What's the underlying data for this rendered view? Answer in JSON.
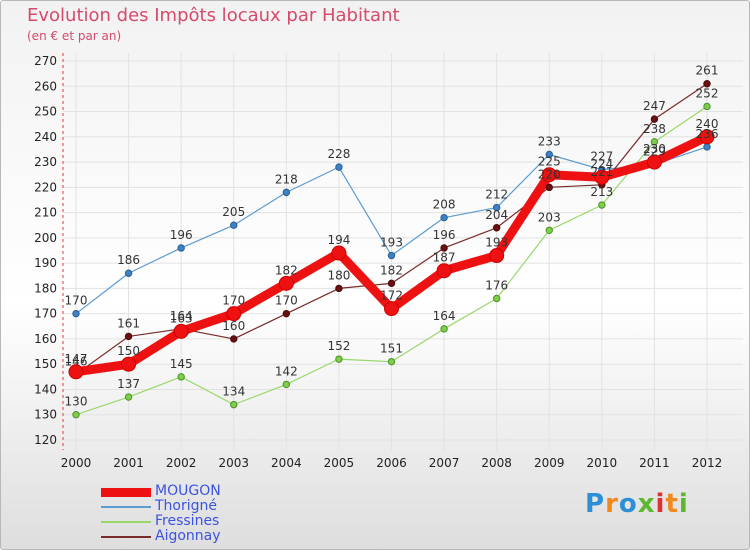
{
  "title": "Evolution des Impôts locaux par Habitant",
  "subtitle": "(en € et par an)",
  "logo": {
    "letters": [
      "P",
      "r",
      "o",
      "x",
      "i",
      "t",
      "i"
    ],
    "colors": [
      "#2d8fd5",
      "#f08a1c",
      "#2d8fd5",
      "#5cb82e",
      "#e0312e",
      "#f08a1c",
      "#5cb82e"
    ]
  },
  "chart_data": {
    "type": "line",
    "title": "Evolution des Impôts locaux par Habitant",
    "subtitle": "(en € et par an)",
    "xlabel": "",
    "ylabel": "",
    "x": [
      "2000",
      "2001",
      "2002",
      "2003",
      "2004",
      "2005",
      "2006",
      "2007",
      "2008",
      "2009",
      "2010",
      "2011",
      "2012"
    ],
    "yticks": [
      120,
      130,
      140,
      150,
      160,
      170,
      180,
      190,
      200,
      210,
      220,
      230,
      240,
      250,
      260,
      270
    ],
    "ylim": [
      120,
      270
    ],
    "grid": true,
    "legend_position": "bottom-left",
    "series": [
      {
        "name": "Thorigné",
        "color": "#5b9bd0",
        "values": [
          170,
          186,
          196,
          205,
          218,
          228,
          193,
          208,
          212,
          233,
          227,
          229,
          236
        ],
        "labels": [
          "170",
          "186",
          "196",
          "205",
          "218",
          "228",
          "193",
          "208",
          "212",
          "233",
          "227",
          "229",
          "236"
        ]
      },
      {
        "name": "Fressines",
        "color": "#98d86a",
        "values": [
          130,
          137,
          145,
          134,
          142,
          152,
          151,
          164,
          176,
          203,
          213,
          238,
          252
        ],
        "labels": [
          "130",
          "137",
          "145",
          "134",
          "142",
          "152",
          "151",
          "164",
          "176",
          "203",
          "213",
          "238",
          "252"
        ]
      },
      {
        "name": "Aigonnay",
        "color": "#7a2a2a",
        "values": [
          146,
          161,
          164,
          160,
          170,
          180,
          182,
          196,
          204,
          220,
          221,
          247,
          261
        ],
        "labels": [
          "146",
          "161",
          "164",
          "160",
          "170",
          "180",
          "182",
          "196",
          "204",
          "220",
          "221",
          "247",
          "261"
        ]
      },
      {
        "name": "MOUGON",
        "color": "#ee1111",
        "values": [
          147,
          150,
          163,
          170,
          182,
          194,
          172,
          187,
          193,
          225,
          224,
          230,
          240
        ],
        "labels": [
          "147",
          "150",
          "163",
          "170",
          "182",
          "194",
          "172",
          "187",
          "193",
          "225",
          "224",
          "230",
          "240"
        ]
      }
    ],
    "legend": [
      "MOUGON",
      "Thorigné",
      "Fressines",
      "Aigonnay"
    ]
  }
}
